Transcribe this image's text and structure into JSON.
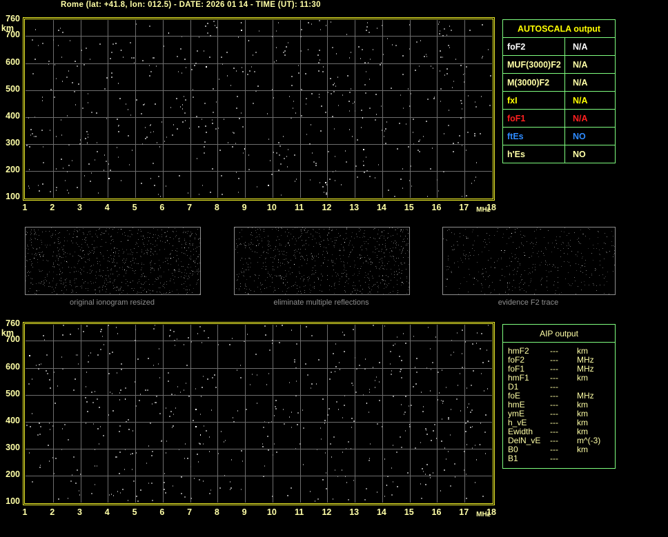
{
  "title": "Rome (lat: +41.8, lon: 012.5) - DATE: 2026 01 14 - TIME (UT): 11:30",
  "colors": {
    "pale_yellow": "#ffffa6",
    "bright_yellow": "#ffff00",
    "frame_yellow": "#f5f52a",
    "table_border_green": "#80ff80",
    "gridline_gray": "#6e6e6e",
    "noise_gray": "#8e8e8e",
    "thumb_border_gray": "#8f8f8f",
    "caption_gray": "#8f8f8f",
    "red": "#ff2020",
    "blue": "#2e8bff",
    "white": "#ffffff",
    "background": "#000000"
  },
  "ionogram_axes": {
    "y_unit": "km",
    "x_unit": "MHz",
    "y_ticks": [
      760,
      700,
      600,
      500,
      400,
      300,
      200,
      100
    ],
    "x_ticks": [
      1,
      2,
      3,
      4,
      5,
      6,
      7,
      8,
      9,
      10,
      11,
      12,
      13,
      14,
      15,
      16,
      17,
      18
    ],
    "y_range": [
      100,
      760
    ],
    "x_range": [
      1,
      18
    ]
  },
  "autoscala_table": {
    "title": "AUTOSCALA output",
    "rows": [
      {
        "label": "foF2",
        "value": "N/A",
        "color": "#ffffff"
      },
      {
        "label": "MUF(3000)F2",
        "value": "N/A",
        "color": "#ffffa6"
      },
      {
        "label": "M(3000)F2",
        "value": "N/A",
        "color": "#ffffa6"
      },
      {
        "label": "fxI",
        "value": "N/A",
        "color": "#ffff00"
      },
      {
        "label": "foF1",
        "value": "N/A",
        "color": "#ff2020"
      },
      {
        "label": "ftEs",
        "value": "NO",
        "color": "#2e8bff"
      },
      {
        "label": "h'Es",
        "value": "NO",
        "color": "#ffffa6"
      }
    ]
  },
  "thumbnails": [
    {
      "caption": "original ionogram resized"
    },
    {
      "caption": "eliminate multiple reflections"
    },
    {
      "caption": "evidence F2 trace"
    }
  ],
  "aip_table": {
    "title": "AIP output",
    "rows": [
      {
        "label": "hmF2",
        "value": "---",
        "unit": "km"
      },
      {
        "label": "foF2",
        "value": "---",
        "unit": "MHz"
      },
      {
        "label": "foF1",
        "value": "---",
        "unit": "MHz"
      },
      {
        "label": "hmF1",
        "value": "---",
        "unit": "km"
      },
      {
        "label": "D1",
        "value": "---",
        "unit": ""
      },
      {
        "label": "foE",
        "value": "---",
        "unit": "MHz"
      },
      {
        "label": "hmE",
        "value": "---",
        "unit": "km"
      },
      {
        "label": "ymE",
        "value": "---",
        "unit": "km"
      },
      {
        "label": "h_vE",
        "value": "---",
        "unit": "km"
      },
      {
        "label": "Ewidth",
        "value": "---",
        "unit": "km"
      },
      {
        "label": "DelN_vE",
        "value": "---",
        "unit": "m^(-3)"
      },
      {
        "label": "B0",
        "value": "---",
        "unit": "km"
      },
      {
        "label": "B1",
        "value": "---",
        "unit": ""
      }
    ]
  },
  "noise": {
    "seed": 1371,
    "plot_dot_count": 560,
    "thumbnail_dot_counts": [
      900,
      850,
      430
    ]
  }
}
